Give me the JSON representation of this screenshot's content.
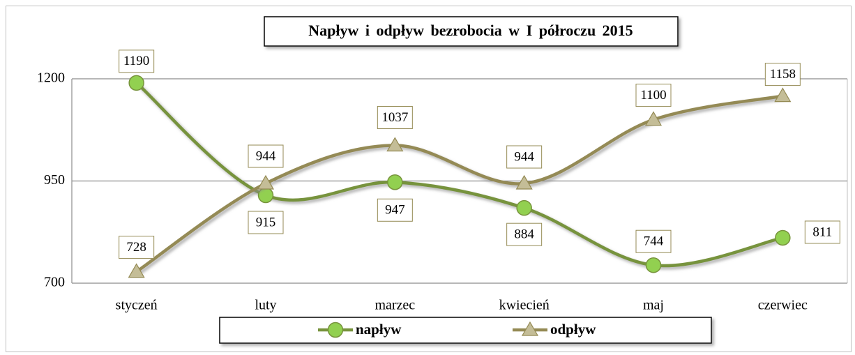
{
  "chart_data": {
    "type": "line",
    "title": "Napływ i odpływ bezrobocia w I półroczu 2015",
    "categories": [
      "styczeń",
      "luty",
      "marzec",
      "kwiecień",
      "maj",
      "czerwiec"
    ],
    "series": [
      {
        "name": "napływ",
        "color": "#77933c",
        "marker_color": "#92d050",
        "values": [
          1190,
          915,
          947,
          884,
          744,
          811
        ]
      },
      {
        "name": "odpływ",
        "color": "#948a54",
        "marker_color": "#c4bd97",
        "values": [
          728,
          944,
          1037,
          944,
          1100,
          1158
        ]
      }
    ],
    "ylim": [
      700,
      1200
    ],
    "yticks": [
      700,
      950,
      1200
    ],
    "grid": true,
    "legend": "bottom"
  }
}
